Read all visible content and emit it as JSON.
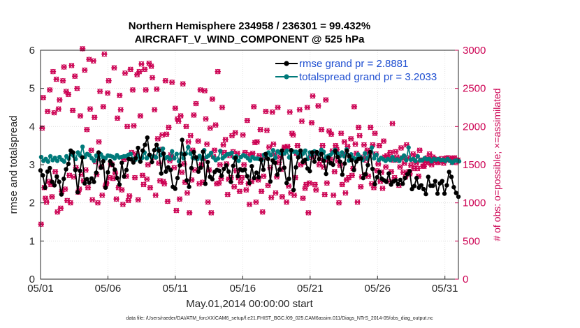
{
  "chart_data": {
    "type": "line",
    "title_line1": "Northern Hemisphere 234958 / 236301 = 99.432%",
    "title_line2": "AIRCRAFT_V_WIND_COMPONENT @ 525 hPa",
    "xlabel": "May.01,2014 00:00:00 start",
    "ylabel": "rmse and totalspread",
    "ylabel_right": "# of obs: o=possible; ×=assimilated",
    "footer": "data file: /Users/raeder/DAI/ATM_forcXX/CAM6_setup/f.e21.FHIST_BGC.f09_025.CAM6assim.011/Diags_NTrS_2014-05/obs_diag_output.nc",
    "xlim": [
      0,
      31
    ],
    "ylim": [
      0,
      6
    ],
    "ylim_right": [
      0,
      3000
    ],
    "x_ticks": [
      0,
      5,
      10,
      15,
      20,
      25,
      30
    ],
    "x_tick_labels": [
      "05/01",
      "05/06",
      "05/11",
      "05/16",
      "05/21",
      "05/26",
      "05/31"
    ],
    "y_ticks": [
      0,
      1,
      2,
      3,
      4,
      5,
      6
    ],
    "y_tick_labels": [
      "0",
      "1",
      "2",
      "3",
      "4",
      "5",
      "6"
    ],
    "y_right_ticks": [
      0,
      500,
      1000,
      1500,
      2000,
      2500,
      3000
    ],
    "y_right_tick_labels": [
      "0",
      "500",
      "1000",
      "1500",
      "2000",
      "2500",
      "3000"
    ],
    "grid": true,
    "legend_position": "top-right",
    "series": [
      {
        "name": "rmse grand pr = 2.8881",
        "color": "#000000",
        "marker": "circle",
        "axis": "left",
        "values": [
          2.85,
          2.72,
          2.4,
          2.82,
          2.91,
          2.55,
          2.46,
          2.69,
          2.55,
          2.22,
          2.63,
          2.88,
          3.02,
          3.37,
          3.32,
          2.86,
          2.28,
          2.84,
          3.19,
          2.51,
          2.62,
          2.53,
          2.64,
          2.55,
          2.79,
          3.32,
          2.92,
          3.09,
          2.4,
          2.8,
          3.09,
          3.0,
          2.87,
          2.65,
          2.48,
          3.05,
          2.69,
          2.86,
          3.15,
          3.14,
          3.06,
          3.17,
          3.44,
          3.08,
          3.37,
          3.52,
          3.71,
          3.26,
          3.07,
          3.38,
          3.52,
          3.37,
          2.77,
          3.29,
          2.82,
          2.93,
          2.86,
          2.42,
          2.37,
          2.65,
          2.98,
          3.65,
          3.27,
          2.59,
          2.42,
          2.91,
          3.33,
          3.19,
          2.82,
          2.92,
          3.34,
          2.5,
          3.07,
          2.68,
          2.62,
          2.81,
          2.86,
          2.84,
          2.71,
          2.89,
          2.98,
          2.82,
          2.55,
          2.97,
          3.18,
          2.7,
          2.88,
          2.85,
          2.87,
          2.7,
          2.52,
          2.96,
          2.65,
          2.79,
          2.67,
          3.13,
          2.87,
          3.28,
          3.15,
          2.56,
          3.11,
          3.05,
          2.74,
          2.87,
          3.37,
          2.92,
          2.52,
          2.63,
          3.38,
          2.34,
          2.93,
          3.19,
          3.37,
          3.07,
          3.13,
          2.9,
          2.83,
          3.32,
          3.08,
          3.33,
          3.15,
          3.28,
          3.1,
          2.76,
          3.19,
          3.04,
          3.0,
          3.36,
          3.2,
          3.08,
          2.74,
          3.03,
          3.37,
          3.22,
          3.12,
          2.86,
          3.08,
          3.15,
          3.16,
          2.65,
          2.75,
          2.99,
          3.33,
          2.89,
          2.49,
          2.67,
          2.81,
          2.63,
          2.59,
          2.55,
          2.77,
          2.48,
          2.56,
          2.59,
          2.49,
          2.6,
          2.5,
          2.65,
          2.75,
          2.83,
          2.36,
          2.44,
          2.65,
          2.4,
          2.46,
          2.36,
          2.23,
          2.68,
          2.45,
          2.45,
          2.57,
          2.24,
          2.51,
          2.57,
          2.24,
          2.46,
          2.81,
          2.68,
          2.41,
          2.26,
          2.16
        ]
      },
      {
        "name": "totalspread grand pr = 3.2033",
        "color": "#007a7a",
        "marker": "circle",
        "axis": "left",
        "values": [
          3.2,
          3.1,
          3.15,
          3.08,
          3.22,
          3.12,
          3.18,
          3.1,
          3.2,
          3.13,
          3.08,
          3.22,
          3.16,
          3.28,
          3.24,
          3.15,
          3.32,
          3.24,
          3.47,
          3.2,
          3.28,
          3.25,
          3.17,
          3.1,
          3.24,
          3.15,
          3.27,
          3.19,
          3.17,
          3.24,
          3.23,
          3.21,
          3.17,
          3.25,
          3.19,
          3.2,
          3.22,
          3.22,
          3.26,
          3.28,
          3.15,
          3.13,
          3.24,
          3.1,
          3.18,
          3.32,
          3.17,
          3.25,
          3.21,
          3.22,
          3.19,
          3.41,
          3.25,
          3.42,
          3.17,
          3.2,
          3.15,
          3.35,
          3.17,
          3.28,
          3.09,
          3.29,
          3.17,
          3.29,
          3.46,
          3.29,
          3.18,
          3.17,
          3.15,
          3.23,
          3.15,
          3.38,
          3.2,
          3.24,
          3.31,
          3.19,
          3.12,
          3.16,
          3.36,
          3.17,
          3.22,
          3.27,
          3.28,
          3.31,
          3.18,
          3.22,
          3.1,
          3.2,
          3.25,
          3.22,
          3.17,
          3.11,
          3.2,
          3.16,
          3.16,
          3.15,
          3.12,
          3.26,
          3.21,
          3.32,
          3.25,
          3.38,
          3.18,
          3.35,
          3.31,
          3.28,
          3.3,
          3.37,
          3.19,
          3.34,
          3.34,
          3.34,
          3.29,
          3.22,
          3.29,
          3.37,
          3.15,
          3.32,
          3.25,
          3.35,
          3.3,
          3.29,
          3.39,
          3.34,
          3.19,
          3.23,
          3.26,
          3.32,
          3.39,
          3.3,
          3.22,
          3.32,
          3.22,
          3.4,
          3.11,
          3.27,
          3.18,
          3.15,
          3.27,
          3.2,
          3.12,
          3.3,
          3.16,
          3.23,
          3.45,
          3.17,
          3.26,
          3.12,
          3.18,
          3.14,
          3.1,
          3.15,
          3.12,
          3.2,
          3.12,
          3.14,
          3.1,
          3.18,
          3.24,
          3.12,
          3.45,
          3.13,
          3.15,
          3.1,
          3.22,
          3.11,
          3.12,
          3.17,
          3.14,
          3.15,
          3.09,
          3.15,
          3.13,
          3.15,
          3.12,
          3.13,
          3.1,
          3.15,
          3.1,
          3.05,
          3.1,
          3.11,
          3.09
        ]
      }
    ],
    "obs_series": [
      {
        "name": "possible obs",
        "axis": "right",
        "marker": "o",
        "color": "#cc0052",
        "values": [
          720,
          1980,
          2380,
          1200,
          1060,
          1010,
          2200,
          1280,
          2480,
          1240,
          1080,
          2720,
          2180,
          1410,
          2620,
          880,
          2230,
          2350,
          930,
          1150,
          2600,
          2780,
          1180,
          2460,
          1030,
          2420,
          1360,
          1000,
          2800,
          2210,
          1340,
          2660,
          1460,
          2500,
          1140,
          1180,
          2140,
          1370,
          3020,
          1290,
          2740,
          1430,
          1960,
          1200,
          2880,
          2230,
          1690,
          1040,
          2860,
          2120,
          1540,
          1370,
          1000,
          1800,
          2460,
          1470,
          1100,
          2260,
          2950,
          1220,
          1260,
          2440,
          2600,
          1330,
          1510,
          1500,
          1320,
          2770,
          1390,
          1050,
          2110,
          1200,
          2410,
          2220,
          1170,
          980,
          1570,
          2700,
          1350,
          2000,
          1030,
          1090,
          2750,
          1660,
          2480,
          2010,
          1330,
          1640,
          2680,
          1040,
          2720,
          2140,
          2820,
          1360,
          1240,
          2750,
          2480,
          1310,
          1500,
          2830,
          1200,
          2790,
          2640,
          1600,
          2220,
          1100,
          2490,
          1840,
          1520,
          1290,
          1700,
          1890,
          1280,
          1250,
          2600,
          1900,
          1020,
          1990,
          1550,
          1630,
          2580,
          1590,
          1460,
          2240,
          900,
          2100,
          2070,
          1050,
          2140,
          1400,
          2560,
          1510,
          1270,
          2000,
          1130,
          1800,
          870,
          1880,
          1300,
          1690,
          2150,
          1430,
          2300,
          1590,
          1810,
          1250,
          2480,
          1500,
          1270,
          1580,
          2470,
          2100,
          1770,
          1010,
          1430,
          1980,
          870,
          2360,
          1610,
          1690,
          2020,
          1250,
          2720,
          1260,
          1500,
          1320,
          2250,
          1760,
          1660,
          1830,
          1510,
          1110,
          1310,
          1620,
          1330,
          1880,
          1670,
          1210,
          1920,
          1420,
          1650,
          1330,
          1150,
          1270,
          1330,
          1890,
          1500,
          1660,
          1170,
          2080,
          1250,
          980,
          1630,
          1280,
          1650,
          2260,
          1790,
          1010,
          1800,
          1300,
          1620,
          1960,
          1150,
          880,
          1350,
          1600,
          2200,
          1950,
          1230,
          1730,
          1460,
          1070,
          2190,
          1770,
          1640,
          1130,
          1340,
          2250,
          1530,
          1600,
          1440,
          1080,
          1650,
          1730,
          1720,
          1010,
          1740,
          1220,
          2190,
          1130,
          1910,
          1890,
          1100,
          1330,
          1650,
          1750,
          1640,
          2220,
          1500,
          2070,
          1060,
          1530,
          1190,
          1240,
          2250,
          870,
          1260,
          1600,
          2050,
          2400,
          1620,
          1240,
          1170,
          1650,
          2270,
          1500,
          1560,
          1960,
          1750,
          1470,
          1110,
          2350,
          1260,
          1560,
          1940,
          1570,
          1900,
          1680,
          1100,
          1410,
          1750,
          1700,
          1550,
          1000,
          1490,
          1910,
          1240,
          1640,
          1800,
          1130,
          1300,
          1740,
          1330,
          1620,
          1840,
          1360,
          1450,
          2260,
          1770,
          1650,
          1010,
          1990,
          1880,
          1210,
          1340,
          1600,
          1760,
          1370,
          1560,
          1690,
          1350,
          1640,
          1990,
          1250,
          1760,
          1200,
          1910,
          1640,
          1420,
          1510,
          1750,
          1280,
          1400,
          1190,
          1810,
          1600,
          1470,
          1620,
          1600,
          1280,
          1660,
          1410,
          2040,
          1560,
          1330,
          1670,
          1600,
          1560,
          1230,
          1470,
          1720,
          1590,
          1400,
          1520,
          1340,
          1760,
          1590,
          1410,
          1380,
          1490,
          1560,
          1640,
          1450,
          1610,
          1520,
          1450,
          1350,
          1690,
          1560,
          1560,
          1480,
          1480,
          1530,
          1550,
          1590,
          1530,
          1640,
          1520,
          1500,
          1600,
          1580,
          1550,
          1570,
          1530,
          1530,
          1550,
          1560,
          1580,
          1560,
          1520,
          1560,
          1580,
          1590,
          1570,
          1590,
          1560,
          1570,
          1530,
          1580,
          1590,
          1540,
          1560,
          1560
        ]
      }
    ]
  }
}
